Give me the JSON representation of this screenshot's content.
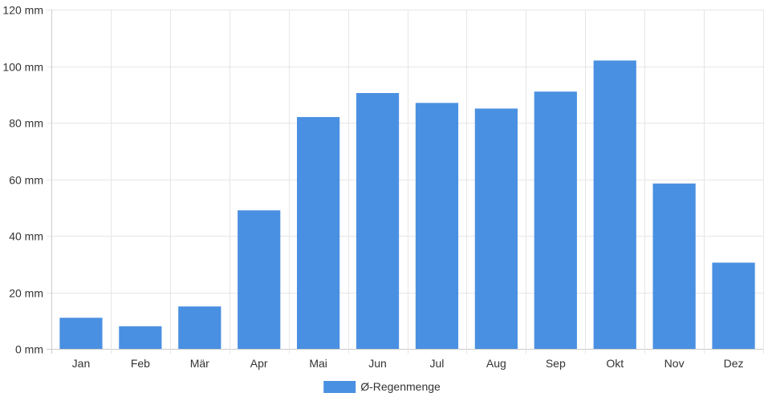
{
  "chart_data": {
    "type": "bar",
    "categories": [
      "Jan",
      "Feb",
      "Mär",
      "Apr",
      "Mai",
      "Jun",
      "Jul",
      "Aug",
      "Sep",
      "Okt",
      "Nov",
      "Dez"
    ],
    "series": [
      {
        "name": "Ø-Regenmenge",
        "color": "#4a90e2",
        "values": [
          11,
          8,
          15,
          49,
          82,
          90.5,
          87,
          85,
          91,
          102,
          58.5,
          30.5
        ]
      }
    ],
    "ylim": [
      0,
      120
    ],
    "yticks": [
      0,
      20,
      40,
      60,
      80,
      100,
      120
    ],
    "y_unit": "mm",
    "grid": true,
    "legend_position": "bottom"
  }
}
